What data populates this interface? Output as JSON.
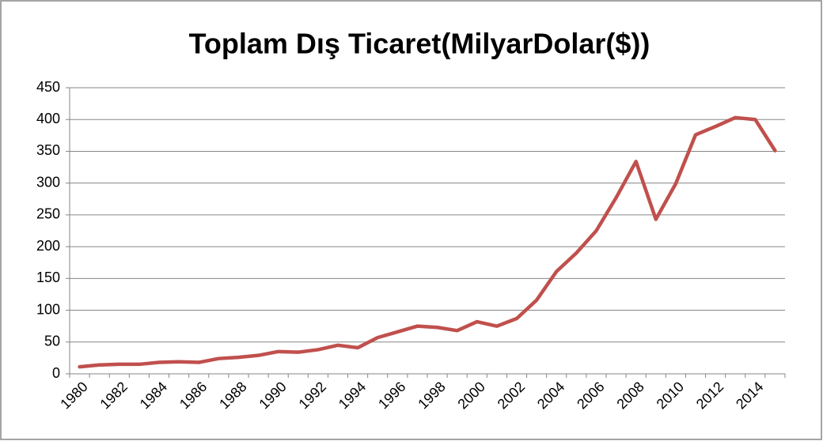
{
  "chart_data": {
    "type": "line",
    "title": "Toplam Dış Ticaret(MilyarDolar($))",
    "categories": [
      "1980",
      null,
      "1982",
      null,
      "1984",
      null,
      "1986",
      null,
      "1988",
      null,
      "1990",
      null,
      "1992",
      null,
      "1994",
      null,
      "1996",
      null,
      "1998",
      null,
      "2000",
      null,
      "2002",
      null,
      "2004",
      null,
      "2006",
      null,
      "2008",
      null,
      "2010",
      null,
      "2012",
      null,
      "2014",
      null
    ],
    "values": [
      11,
      14,
      15,
      15,
      18,
      19,
      18,
      24,
      26,
      29,
      35,
      34,
      38,
      45,
      41,
      57,
      66,
      75,
      73,
      68,
      82,
      75,
      87,
      116,
      161,
      190,
      225,
      277,
      334,
      243,
      299,
      376,
      389,
      403,
      400,
      351
    ],
    "color": "#c0504d",
    "ylim": [
      0,
      450
    ],
    "yticks": [
      0,
      50,
      100,
      150,
      200,
      250,
      300,
      350,
      400,
      450
    ],
    "grid": true
  }
}
